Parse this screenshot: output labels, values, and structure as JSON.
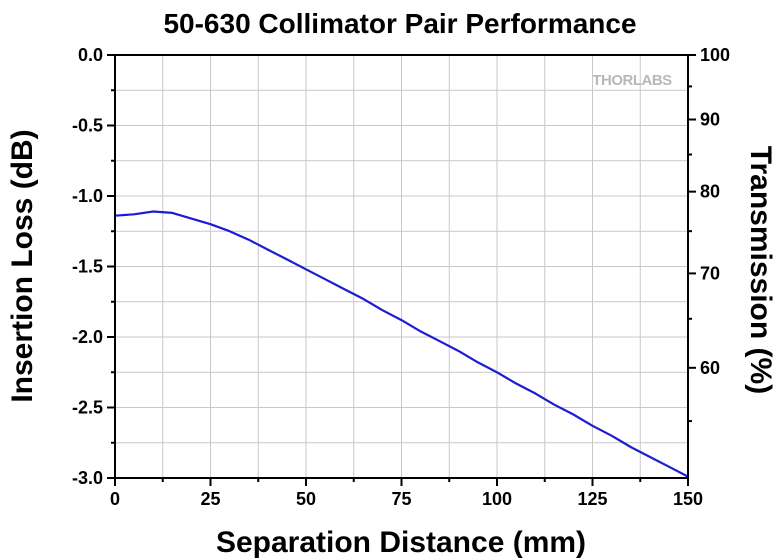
{
  "chart_data": {
    "type": "line",
    "title": "50-630 Collimator Pair Performance",
    "xlabel": "Separation Distance (mm)",
    "ylabel": "Insertion Loss (dB)",
    "y2label": "Transmission (%)",
    "xlim": [
      0,
      150
    ],
    "ylim": [
      -3.0,
      0.0
    ],
    "x_ticks": [
      "0",
      "25",
      "50",
      "75",
      "100",
      "125",
      "150"
    ],
    "y_ticks": [
      "0.0",
      "-0.5",
      "-1.0",
      "-1.5",
      "-2.0",
      "-2.5",
      "-3.0"
    ],
    "y2_ticks": [
      "100",
      "90",
      "80",
      "70",
      "60"
    ],
    "grid": true,
    "series_color": "#1c1cd4",
    "series": [
      {
        "x": [
          0,
          5,
          10,
          15,
          20,
          25,
          30,
          35,
          40,
          45,
          50,
          55,
          60,
          65,
          70,
          75,
          80,
          85,
          90,
          95,
          100,
          105,
          110,
          115,
          120,
          125,
          130,
          135,
          140,
          145,
          150
        ],
        "y": [
          -1.14,
          -1.13,
          -1.11,
          -1.12,
          -1.16,
          -1.2,
          -1.25,
          -1.31,
          -1.38,
          -1.45,
          -1.52,
          -1.59,
          -1.66,
          -1.73,
          -1.81,
          -1.88,
          -1.96,
          -2.03,
          -2.1,
          -2.18,
          -2.25,
          -2.33,
          -2.4,
          -2.48,
          -2.55,
          -2.63,
          -2.7,
          -2.78,
          -2.85,
          -2.92,
          -2.99
        ]
      }
    ]
  },
  "brand": {
    "logo_text": "THORLABS"
  }
}
